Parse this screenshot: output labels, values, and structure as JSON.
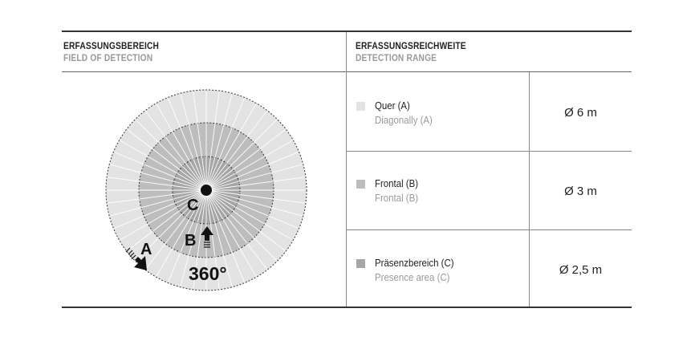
{
  "left_header": {
    "title": "ERFASSUNGSBEREICH",
    "subtitle": "FIELD OF DETECTION"
  },
  "right_header": {
    "title": "ERFASSUNGSREICHWEITE",
    "subtitle": "DETECTION RANGE"
  },
  "diagram": {
    "label_a": "A",
    "label_b": "B",
    "label_c": "C",
    "angle": "360°",
    "colors": {
      "zone_a": "#e3e3e3",
      "zone_b": "#bdbdbd",
      "zone_c": "#a6a6a6"
    }
  },
  "rows": [
    {
      "label": "Quer (A)",
      "sublabel": "Diagonally (A)",
      "value": "Ø 6 m",
      "color": "#e3e3e3"
    },
    {
      "label": "Frontal (B)",
      "sublabel": "Frontal (B)",
      "value": "Ø 3 m",
      "color": "#bdbdbd"
    },
    {
      "label": "Präsenzbereich (C)",
      "sublabel": "Presence area (C)",
      "value": "Ø 2,5 m",
      "color": "#a6a6a6"
    }
  ]
}
